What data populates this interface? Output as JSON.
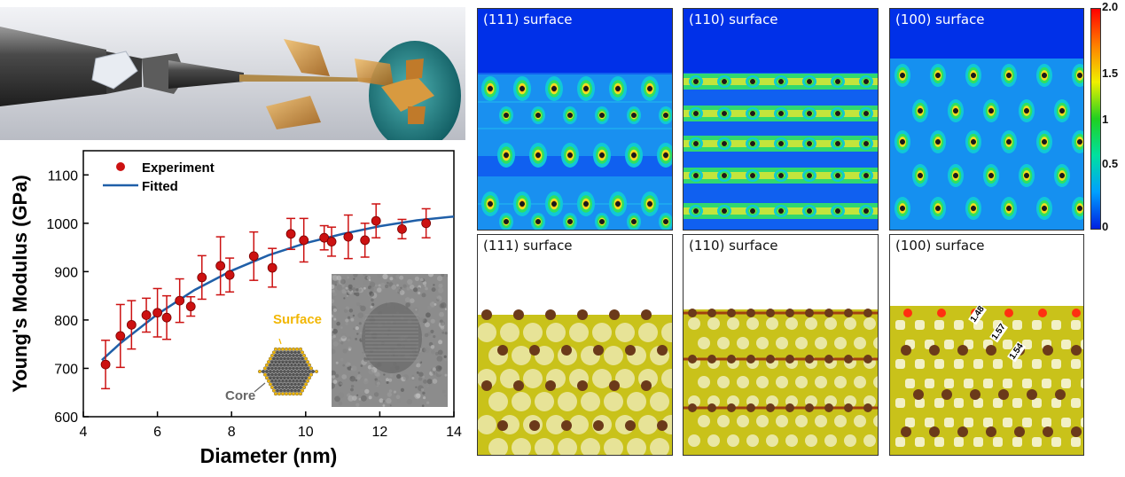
{
  "top_panels": {
    "labels": [
      "(111) surface",
      "(110) surface",
      "(100) surface"
    ]
  },
  "bottom_panels": {
    "labels": [
      "(111) surface",
      "(110) surface",
      "(100) surface"
    ],
    "bond_lengths": [
      "1.48",
      "1.57",
      "1.54"
    ]
  },
  "colorbar": {
    "tick_labels": [
      "2.0",
      "1.5",
      "1",
      "0.5",
      "0"
    ],
    "colors": [
      "#0020e0",
      "#00a0ff",
      "#00e0a0",
      "#20d020",
      "#f0f000",
      "#ff8000",
      "#ff0000"
    ]
  },
  "inset": {
    "surface_label": "Surface",
    "core_label": "Core",
    "surface_color": "#f2b705",
    "core_color": "#666666"
  },
  "chart_data": {
    "type": "scatter",
    "xlabel": "Diameter (nm)",
    "ylabel": "Young's Modulus (GPa)",
    "xlim": [
      4,
      14
    ],
    "ylim": [
      600,
      1150
    ],
    "x_ticks": [
      "4",
      "6",
      "8",
      "10",
      "12",
      "14"
    ],
    "y_ticks": [
      "600",
      "700",
      "800",
      "900",
      "1000",
      "1100"
    ],
    "legend": {
      "position": "top-left",
      "experiment": "Experiment",
      "fitted": "Fitted"
    },
    "series": [
      {
        "name": "Experiment",
        "color": "#cc1111",
        "x": [
          4.6,
          5.0,
          5.3,
          5.7,
          6.0,
          6.25,
          6.6,
          6.9,
          7.2,
          7.7,
          7.95,
          8.6,
          9.1,
          9.6,
          9.95,
          10.5,
          10.7,
          11.15,
          11.6,
          11.9,
          12.6,
          13.25
        ],
        "y": [
          708,
          767,
          790,
          810,
          815,
          805,
          840,
          828,
          888,
          912,
          893,
          932,
          908,
          978,
          965,
          970,
          962,
          972,
          965,
          1005,
          988,
          1000
        ],
        "err": [
          50,
          65,
          50,
          35,
          50,
          45,
          45,
          20,
          45,
          60,
          35,
          50,
          40,
          32,
          45,
          25,
          30,
          45,
          35,
          35,
          20,
          30
        ]
      },
      {
        "name": "Fitted",
        "color": "#1f5fa8",
        "x": [
          4.5,
          5,
          6,
          7,
          8,
          9,
          10,
          11,
          12,
          13,
          14
        ],
        "y": [
          717,
          752,
          812,
          862,
          902,
          934,
          959,
          978,
          994,
          1006,
          1014
        ]
      }
    ]
  }
}
